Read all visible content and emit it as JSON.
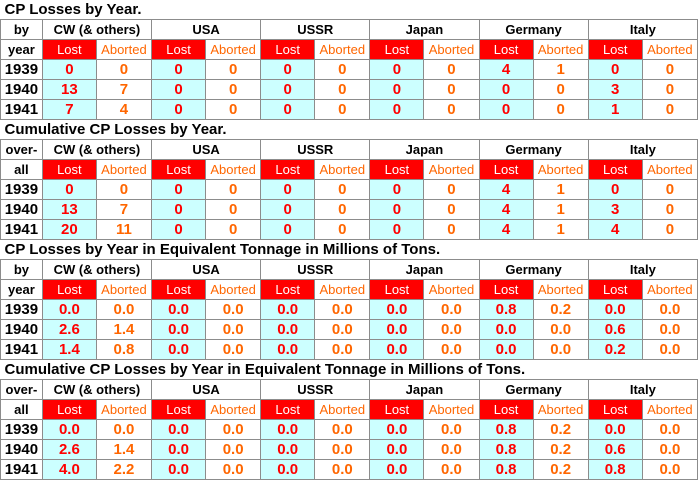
{
  "colors": {
    "lost_header_bg": "#ff0000",
    "lost_value_bg": "#ccffff",
    "lost_text": "#ff0000",
    "aborted_text": "#ff6600"
  },
  "sections": [
    {
      "title": "CP Losses by Year.",
      "year_header": [
        "by",
        "year"
      ],
      "groups": [
        "CW (& others)",
        "USA",
        "USSR",
        "Japan",
        "Germany",
        "Italy"
      ],
      "subheaders": [
        "Lost",
        "Aborted"
      ],
      "rows": [
        {
          "year": "1939",
          "values": [
            "0",
            "0",
            "0",
            "0",
            "0",
            "0",
            "0",
            "0",
            "4",
            "1",
            "0",
            "0"
          ]
        },
        {
          "year": "1940",
          "values": [
            "13",
            "7",
            "0",
            "0",
            "0",
            "0",
            "0",
            "0",
            "0",
            "0",
            "3",
            "0"
          ]
        },
        {
          "year": "1941",
          "values": [
            "7",
            "4",
            "0",
            "0",
            "0",
            "0",
            "0",
            "0",
            "0",
            "0",
            "1",
            "0"
          ]
        }
      ]
    },
    {
      "title": "Cumulative CP Losses by Year.",
      "year_header": [
        "over-",
        "all"
      ],
      "groups": [
        "CW (& others)",
        "USA",
        "USSR",
        "Japan",
        "Germany",
        "Italy"
      ],
      "subheaders": [
        "Lost",
        "Aborted"
      ],
      "rows": [
        {
          "year": "1939",
          "values": [
            "0",
            "0",
            "0",
            "0",
            "0",
            "0",
            "0",
            "0",
            "4",
            "1",
            "0",
            "0"
          ]
        },
        {
          "year": "1940",
          "values": [
            "13",
            "7",
            "0",
            "0",
            "0",
            "0",
            "0",
            "0",
            "4",
            "1",
            "3",
            "0"
          ]
        },
        {
          "year": "1941",
          "values": [
            "20",
            "11",
            "0",
            "0",
            "0",
            "0",
            "0",
            "0",
            "4",
            "1",
            "4",
            "0"
          ]
        }
      ]
    },
    {
      "title": "CP Losses by Year in Equivalent Tonnage in Millions of Tons.",
      "year_header": [
        "by",
        "year"
      ],
      "groups": [
        "CW (& others)",
        "USA",
        "USSR",
        "Japan",
        "Germany",
        "Italy"
      ],
      "subheaders": [
        "Lost",
        "Aborted"
      ],
      "rows": [
        {
          "year": "1939",
          "values": [
            "0.0",
            "0.0",
            "0.0",
            "0.0",
            "0.0",
            "0.0",
            "0.0",
            "0.0",
            "0.8",
            "0.2",
            "0.0",
            "0.0"
          ]
        },
        {
          "year": "1940",
          "values": [
            "2.6",
            "1.4",
            "0.0",
            "0.0",
            "0.0",
            "0.0",
            "0.0",
            "0.0",
            "0.0",
            "0.0",
            "0.6",
            "0.0"
          ]
        },
        {
          "year": "1941",
          "values": [
            "1.4",
            "0.8",
            "0.0",
            "0.0",
            "0.0",
            "0.0",
            "0.0",
            "0.0",
            "0.0",
            "0.0",
            "0.2",
            "0.0"
          ]
        }
      ]
    },
    {
      "title": "Cumulative CP Losses by Year in Equivalent Tonnage in Millions of Tons.",
      "year_header": [
        "over-",
        "all"
      ],
      "groups": [
        "CW (& others)",
        "USA",
        "USSR",
        "Japan",
        "Germany",
        "Italy"
      ],
      "subheaders": [
        "Lost",
        "Aborted"
      ],
      "rows": [
        {
          "year": "1939",
          "values": [
            "0.0",
            "0.0",
            "0.0",
            "0.0",
            "0.0",
            "0.0",
            "0.0",
            "0.0",
            "0.8",
            "0.2",
            "0.0",
            "0.0"
          ]
        },
        {
          "year": "1940",
          "values": [
            "2.6",
            "1.4",
            "0.0",
            "0.0",
            "0.0",
            "0.0",
            "0.0",
            "0.0",
            "0.8",
            "0.2",
            "0.6",
            "0.0"
          ]
        },
        {
          "year": "1941",
          "values": [
            "4.0",
            "2.2",
            "0.0",
            "0.0",
            "0.0",
            "0.0",
            "0.0",
            "0.0",
            "0.8",
            "0.2",
            "0.8",
            "0.0"
          ]
        }
      ]
    }
  ]
}
